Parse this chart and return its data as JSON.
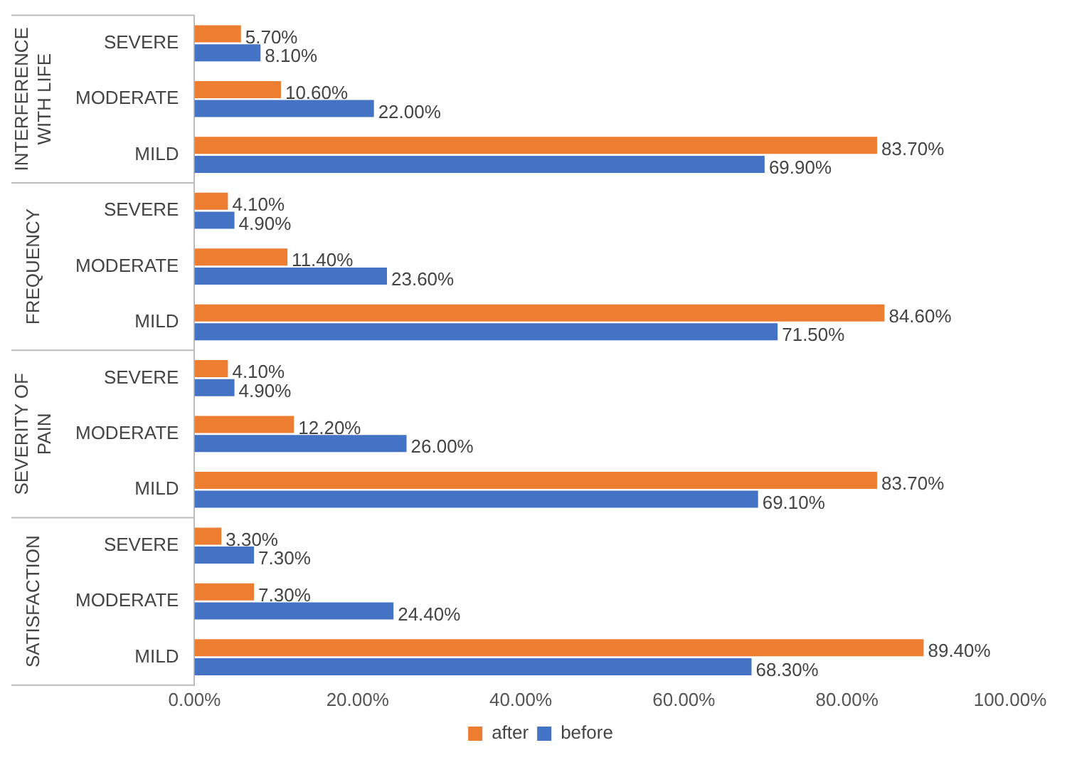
{
  "chart_data": {
    "type": "bar",
    "orientation": "horizontal",
    "categories": [
      "SEVERE",
      "MODERATE",
      "MILD",
      "SEVERE",
      "MODERATE",
      "MILD",
      "SEVERE",
      "MODERATE",
      "MILD",
      "SEVERE",
      "MODERATE",
      "MILD"
    ],
    "annotations": [
      "INTERFERENCE WITH LIFE",
      "FREQUENCY",
      "SEVERITY OF PAIN",
      "SATISFACTION"
    ],
    "series": [
      {
        "name": "after",
        "color": "#ed7d31",
        "values": [
          5.7,
          10.6,
          83.7,
          4.1,
          11.4,
          84.6,
          4.1,
          12.2,
          83.7,
          3.3,
          7.3,
          89.4
        ],
        "value_labels": [
          "5.70%",
          "10.60%",
          "83.70%",
          "4.10%",
          "11.40%",
          "84.60%",
          "4.10%",
          "12.20%",
          "83.70%",
          "3.30%",
          "7.30%",
          "89.40%"
        ]
      },
      {
        "name": "before",
        "color": "#4472c4",
        "values": [
          8.1,
          22.0,
          69.9,
          4.9,
          23.6,
          71.5,
          4.9,
          26.0,
          69.1,
          7.3,
          24.4,
          68.3
        ],
        "value_labels": [
          "8.10%",
          "22.00%",
          "69.90%",
          "4.90%",
          "23.60%",
          "71.50%",
          "4.90%",
          "26.00%",
          "69.10%",
          "7.30%",
          "24.40%",
          "68.30%"
        ]
      }
    ],
    "xlim": [
      0,
      100
    ],
    "xticks": [
      {
        "value": 0,
        "label": "0.00%"
      },
      {
        "value": 20,
        "label": "20.00%"
      },
      {
        "value": 40,
        "label": "40.00%"
      },
      {
        "value": 60,
        "label": "60.00%"
      },
      {
        "value": 80,
        "label": "80.00%"
      },
      {
        "value": 100,
        "label": "100.00%"
      }
    ],
    "grid": false,
    "legend": "bottom"
  }
}
